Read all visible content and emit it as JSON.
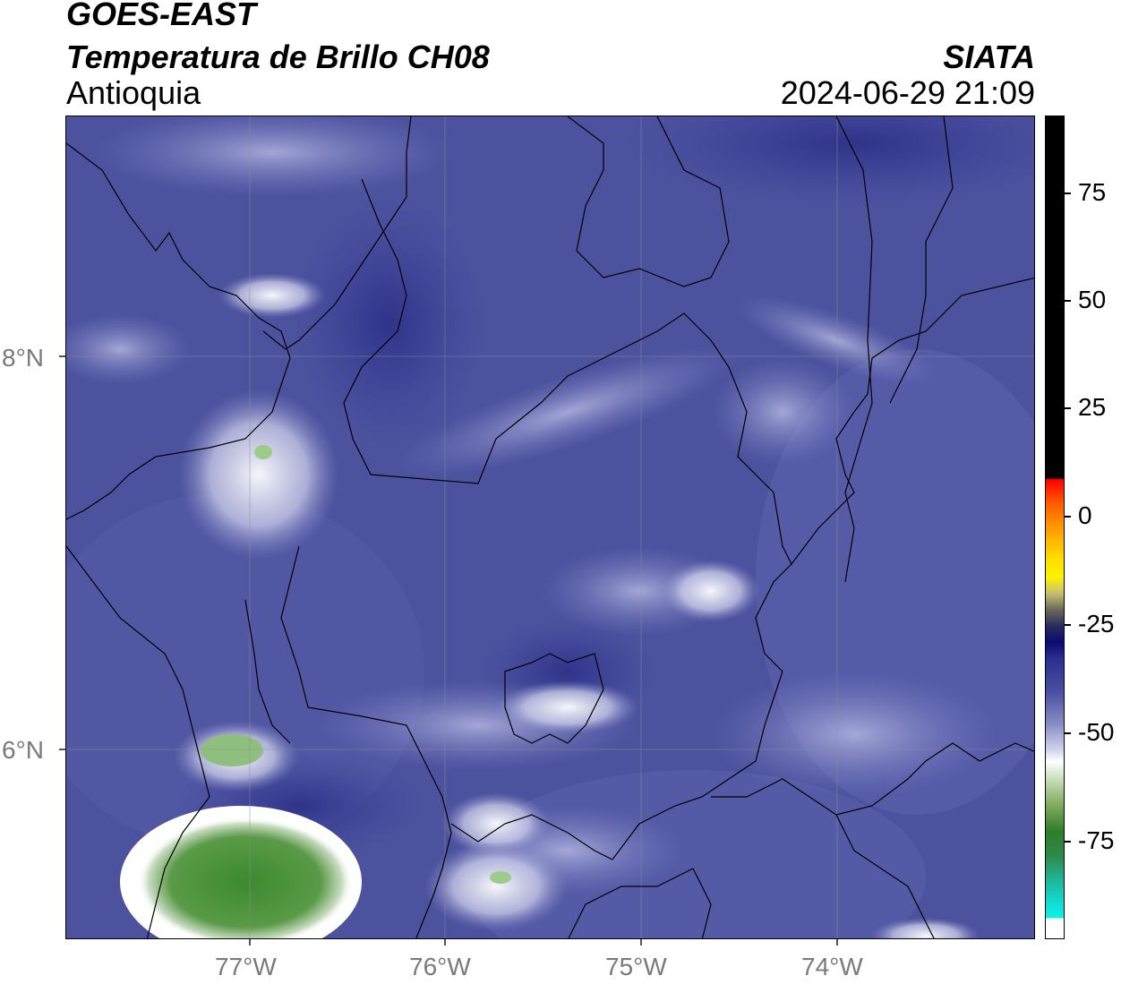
{
  "header": {
    "satellite": "GOES-EAST",
    "product": "Temperatura de Brillo CH08",
    "region": "Antioquia",
    "agency": "SIATA",
    "datetime": "2024-06-29 21:09"
  },
  "map": {
    "lat_labels": [
      "8°N",
      "6°N"
    ],
    "lon_labels": [
      "77°W",
      "76°W",
      "75°W",
      "74°W"
    ],
    "background_color": "#4a4f9e",
    "gridlines": true
  },
  "colorbar": {
    "tick_labels": [
      "75",
      "50",
      "25",
      "0",
      "-25",
      "-50",
      "-75"
    ],
    "colors": [
      "#000000",
      "#ff0000",
      "#ff8c00",
      "#ffff00",
      "#1a1a6e",
      "#3b3f99",
      "#ffffff",
      "#2e8b2e",
      "#1ee0d0"
    ]
  }
}
